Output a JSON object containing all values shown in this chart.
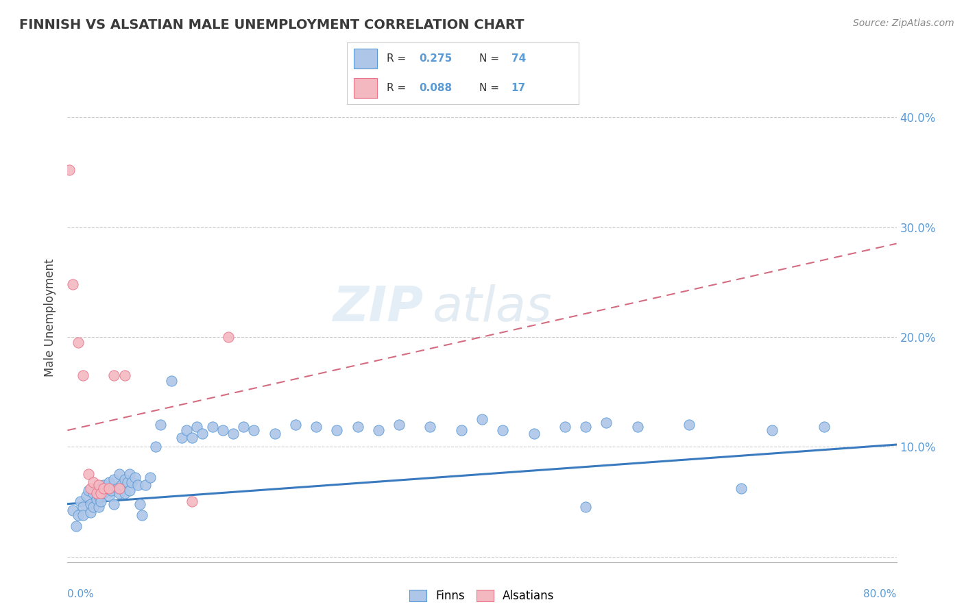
{
  "title": "FINNISH VS ALSATIAN MALE UNEMPLOYMENT CORRELATION CHART",
  "source": "Source: ZipAtlas.com",
  "ylabel": "Male Unemployment",
  "title_color": "#3a3a3a",
  "source_color": "#888888",
  "grid_color": "#cccccc",
  "watermark_zip": "ZIP",
  "watermark_atlas": "atlas",
  "background_color": "#ffffff",
  "finn_scatter_color": "#aec6e8",
  "alsatian_scatter_color": "#f4b8c1",
  "finn_edge_color": "#5b9bd5",
  "alsatian_edge_color": "#e8748a",
  "finn_line_color": "#3a7abf",
  "alsatian_line_color": "#d46b80",
  "xlim": [
    0.0,
    0.8
  ],
  "ylim": [
    -0.005,
    0.44
  ],
  "yticks": [
    0.0,
    0.1,
    0.2,
    0.3,
    0.4
  ],
  "right_ytick_labels": [
    "",
    "10.0%",
    "20.0%",
    "30.0%",
    "40.0%"
  ],
  "finns_data": [
    [
      0.005,
      0.042
    ],
    [
      0.008,
      0.028
    ],
    [
      0.01,
      0.038
    ],
    [
      0.012,
      0.05
    ],
    [
      0.015,
      0.045
    ],
    [
      0.015,
      0.038
    ],
    [
      0.018,
      0.055
    ],
    [
      0.02,
      0.06
    ],
    [
      0.022,
      0.048
    ],
    [
      0.022,
      0.04
    ],
    [
      0.025,
      0.058
    ],
    [
      0.025,
      0.045
    ],
    [
      0.028,
      0.052
    ],
    [
      0.028,
      0.062
    ],
    [
      0.03,
      0.055
    ],
    [
      0.03,
      0.045
    ],
    [
      0.032,
      0.05
    ],
    [
      0.035,
      0.065
    ],
    [
      0.035,
      0.058
    ],
    [
      0.038,
      0.06
    ],
    [
      0.04,
      0.068
    ],
    [
      0.04,
      0.055
    ],
    [
      0.042,
      0.06
    ],
    [
      0.045,
      0.07
    ],
    [
      0.045,
      0.048
    ],
    [
      0.048,
      0.062
    ],
    [
      0.05,
      0.075
    ],
    [
      0.05,
      0.058
    ],
    [
      0.052,
      0.065
    ],
    [
      0.055,
      0.07
    ],
    [
      0.055,
      0.058
    ],
    [
      0.058,
      0.068
    ],
    [
      0.06,
      0.075
    ],
    [
      0.06,
      0.06
    ],
    [
      0.062,
      0.068
    ],
    [
      0.065,
      0.072
    ],
    [
      0.068,
      0.065
    ],
    [
      0.07,
      0.048
    ],
    [
      0.072,
      0.038
    ],
    [
      0.075,
      0.065
    ],
    [
      0.08,
      0.072
    ],
    [
      0.085,
      0.1
    ],
    [
      0.09,
      0.12
    ],
    [
      0.1,
      0.16
    ],
    [
      0.11,
      0.108
    ],
    [
      0.115,
      0.115
    ],
    [
      0.12,
      0.108
    ],
    [
      0.125,
      0.118
    ],
    [
      0.13,
      0.112
    ],
    [
      0.14,
      0.118
    ],
    [
      0.15,
      0.115
    ],
    [
      0.16,
      0.112
    ],
    [
      0.17,
      0.118
    ],
    [
      0.18,
      0.115
    ],
    [
      0.2,
      0.112
    ],
    [
      0.22,
      0.12
    ],
    [
      0.24,
      0.118
    ],
    [
      0.26,
      0.115
    ],
    [
      0.28,
      0.118
    ],
    [
      0.3,
      0.115
    ],
    [
      0.32,
      0.12
    ],
    [
      0.35,
      0.118
    ],
    [
      0.38,
      0.115
    ],
    [
      0.4,
      0.125
    ],
    [
      0.42,
      0.115
    ],
    [
      0.45,
      0.112
    ],
    [
      0.48,
      0.118
    ],
    [
      0.5,
      0.045
    ],
    [
      0.5,
      0.118
    ],
    [
      0.52,
      0.122
    ],
    [
      0.55,
      0.118
    ],
    [
      0.6,
      0.12
    ],
    [
      0.65,
      0.062
    ],
    [
      0.68,
      0.115
    ],
    [
      0.73,
      0.118
    ]
  ],
  "alsatians_data": [
    [
      0.002,
      0.352
    ],
    [
      0.005,
      0.248
    ],
    [
      0.01,
      0.195
    ],
    [
      0.015,
      0.165
    ],
    [
      0.02,
      0.075
    ],
    [
      0.022,
      0.062
    ],
    [
      0.025,
      0.068
    ],
    [
      0.028,
      0.058
    ],
    [
      0.03,
      0.065
    ],
    [
      0.032,
      0.058
    ],
    [
      0.035,
      0.062
    ],
    [
      0.04,
      0.062
    ],
    [
      0.045,
      0.165
    ],
    [
      0.05,
      0.062
    ],
    [
      0.055,
      0.165
    ],
    [
      0.12,
      0.05
    ],
    [
      0.155,
      0.2
    ]
  ],
  "finns_line_x": [
    0.0,
    0.8
  ],
  "finns_line_y": [
    0.048,
    0.102
  ],
  "alsatians_line_x": [
    0.0,
    0.8
  ],
  "alsatians_line_y": [
    0.115,
    0.285
  ]
}
